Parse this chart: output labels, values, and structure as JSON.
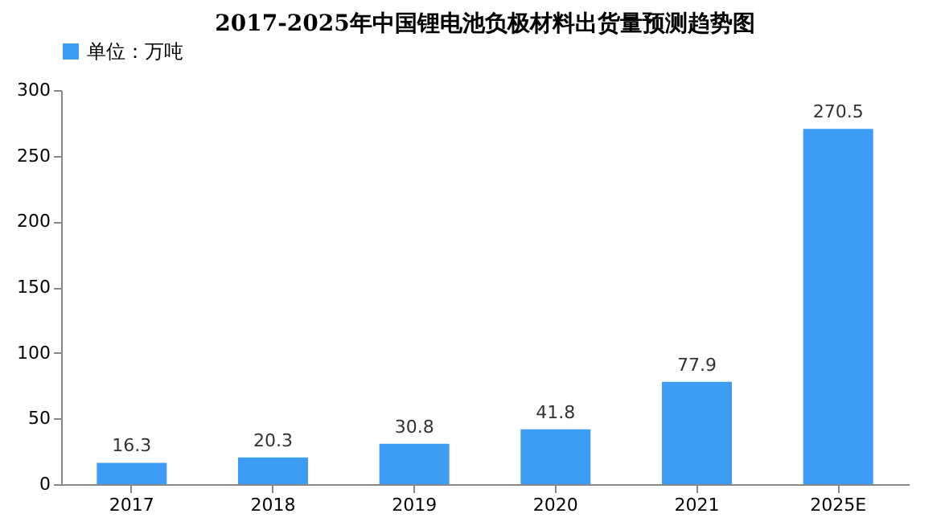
{
  "chart_data": {
    "type": "bar",
    "title": "2017-2025年中国锂电池负极材料出货量预测趋势图",
    "categories": [
      "2017",
      "2018",
      "2019",
      "2020",
      "2021",
      "2025E"
    ],
    "series": [
      {
        "name": "单位：万吨",
        "color": "#3d9cf3",
        "values": [
          16.3,
          20.3,
          30.8,
          41.8,
          77.9,
          270.5
        ]
      }
    ],
    "ylim": [
      0,
      300
    ],
    "yticks": [
      0,
      50,
      100,
      150,
      200,
      250,
      300
    ],
    "data_labels": true,
    "legend": "top",
    "grid": false
  }
}
